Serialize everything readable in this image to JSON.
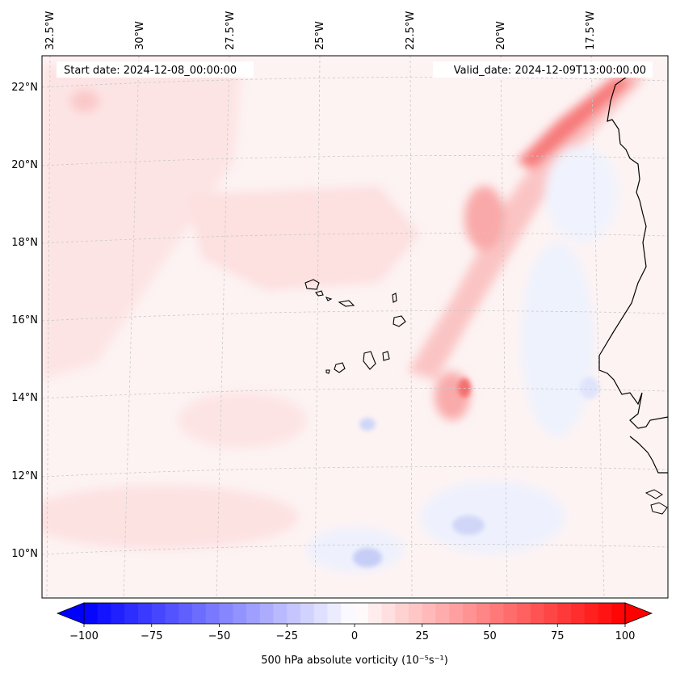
{
  "header": {
    "start_label": "Start date: 2024-12-08_00:00:00",
    "valid_label": "Valid_date: 2024-12-09T13:00:00.00"
  },
  "axes": {
    "lon_labels": [
      "32.5°W",
      "30°W",
      "27.5°W",
      "25°W",
      "22.5°W",
      "20°W",
      "17.5°W"
    ],
    "lat_labels": [
      "22°N",
      "20°N",
      "18°N",
      "16°N",
      "14°N",
      "12°N",
      "10°N"
    ]
  },
  "colorbar": {
    "label": "500 hPa absolute vorticity (10⁻⁵s⁻¹)",
    "ticks": [
      "−100",
      "−75",
      "−50",
      "−25",
      "0",
      "25",
      "50",
      "75",
      "100"
    ],
    "min": -100,
    "max": 100,
    "n_bins": 40,
    "neg_color": "#0000ff",
    "pos_color": "#ff0000",
    "mid_color": "#ffffff"
  },
  "colors": {
    "coast": "#000000",
    "grid": "#c8c8c8",
    "field_bg": "#fdf3f3"
  }
}
